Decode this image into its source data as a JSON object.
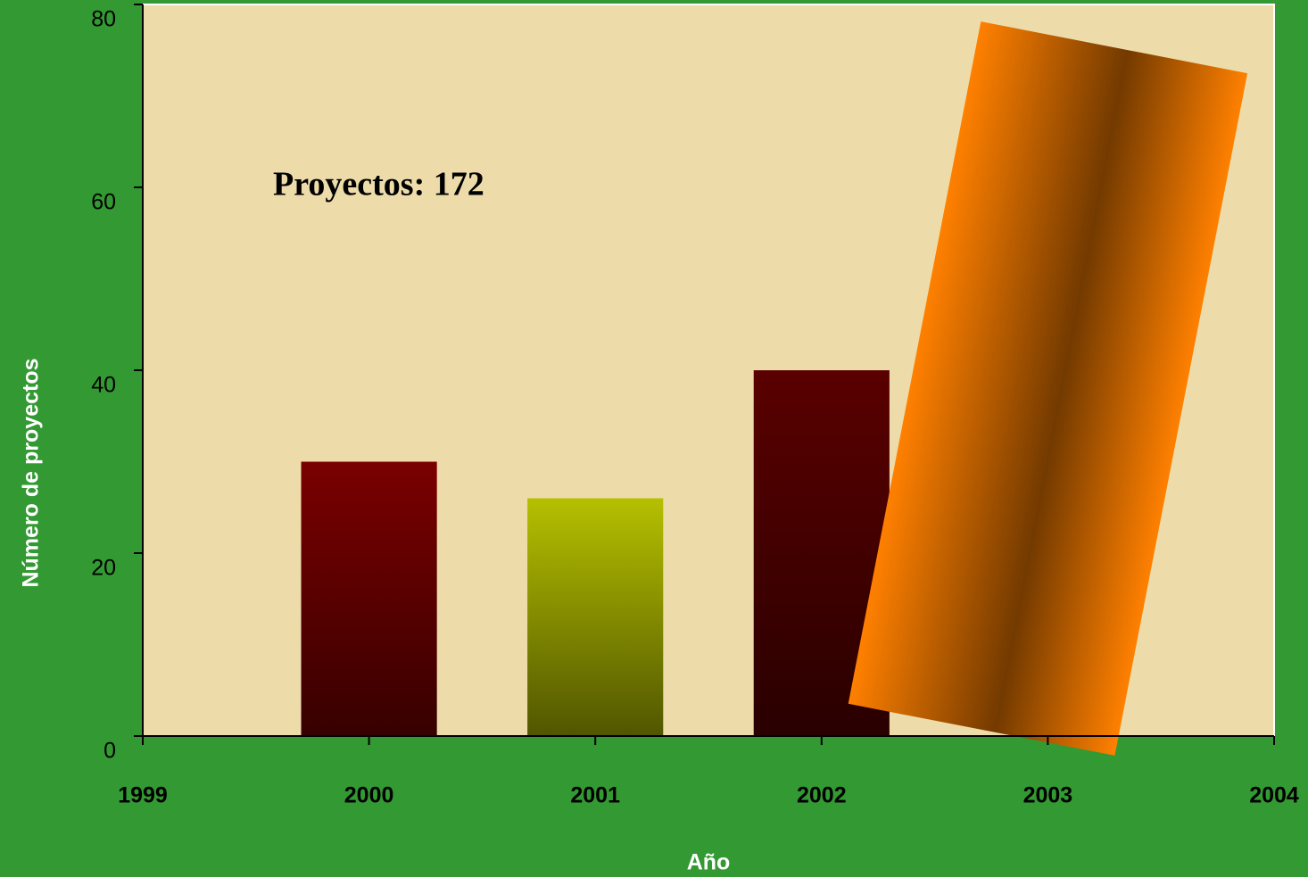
{
  "chart_data": {
    "type": "bar",
    "annotation": "Proyectos: 172",
    "x_label": "Año",
    "y_label": "Número de proyectos",
    "x": [
      2000,
      2001,
      2002,
      2003
    ],
    "values": [
      30,
      26,
      40,
      76
    ],
    "colors": [
      "#7a0000",
      "#b5c000",
      "#5a0000",
      "#ff8000"
    ],
    "xlim": [
      1999,
      2004
    ],
    "xticks": [
      1999,
      2000,
      2001,
      2002,
      2003,
      2004
    ],
    "ylim": [
      0,
      80
    ],
    "yticks": [
      0,
      20,
      40,
      60,
      80
    ]
  }
}
